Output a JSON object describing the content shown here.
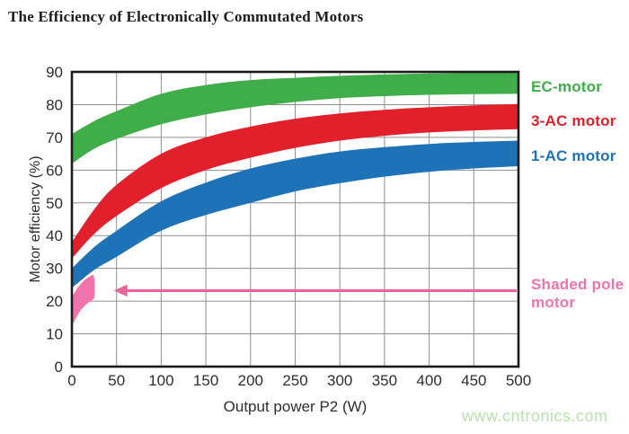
{
  "title": "The Efficiency of Electronically Commutated Motors",
  "watermark": "www.cntronics.com",
  "colors": {
    "green": "#3fae4a",
    "red": "#e2202c",
    "blue": "#1e72b8",
    "pink": "#f173ac",
    "arrow": "#e8649b",
    "grid": "#8f8f8f",
    "axis": "#1b1b1b",
    "text": "#2e2e2e",
    "title": "#1d1d1d",
    "watermark": "#b9e3ac",
    "background": "#ffffff"
  },
  "legend": [
    {
      "label": "EC-motor",
      "color_key": "green"
    },
    {
      "label": "3-AC motor",
      "color_key": "red"
    },
    {
      "label": "1-AC motor",
      "color_key": "blue"
    },
    {
      "label": "Shaded pole motor",
      "color_key": "pink"
    }
  ],
  "chart_data": {
    "type": "area",
    "title": "The Efficiency of Electronically Commutated Motors",
    "xlabel": "Output power P2 (W)",
    "ylabel": "Motor efficiency (%)",
    "xlim": [
      0,
      500
    ],
    "ylim": [
      0,
      90
    ],
    "x_ticks": [
      0,
      50,
      100,
      150,
      200,
      250,
      300,
      350,
      400,
      450,
      500
    ],
    "y_ticks": [
      0,
      10,
      20,
      30,
      40,
      50,
      60,
      70,
      80,
      90
    ],
    "grid": true,
    "legend_position": "right",
    "x": [
      0,
      25,
      50,
      100,
      150,
      200,
      250,
      300,
      350,
      400,
      450,
      500
    ],
    "series": [
      {
        "name": "EC-motor",
        "color_key": "green",
        "upper": [
          71,
          75,
          78,
          83.3,
          86,
          87.5,
          88.2,
          88.8,
          89.2,
          89.5,
          89.8,
          90
        ],
        "lower": [
          62,
          66.5,
          69.5,
          74,
          77,
          79.2,
          80.8,
          82,
          82.6,
          83,
          83.2,
          83.3
        ]
      },
      {
        "name": "3-AC motor",
        "color_key": "red",
        "upper": [
          38,
          48,
          55.5,
          65,
          70,
          73.3,
          75.7,
          77.3,
          78.4,
          79.2,
          79.8,
          80.2
        ],
        "lower": [
          33,
          40.5,
          46,
          54.5,
          60,
          63.8,
          66.8,
          69,
          70.5,
          71.5,
          72.1,
          72.5
        ]
      },
      {
        "name": "1-AC motor",
        "color_key": "blue",
        "upper": [
          30,
          36.5,
          41.5,
          50.5,
          56.2,
          60.5,
          63.5,
          65.7,
          67,
          68,
          68.6,
          69
        ],
        "lower": [
          24,
          29.5,
          33.5,
          41.5,
          46.3,
          50,
          53.5,
          56,
          58,
          59.5,
          60.5,
          61.2
        ]
      }
    ],
    "shaded_pole_band": {
      "name": "Shaded pole motor",
      "color_key": "pink",
      "polygon": [
        [
          0,
          21
        ],
        [
          5,
          23.5
        ],
        [
          10,
          25.3
        ],
        [
          15,
          26.6
        ],
        [
          20,
          27.5
        ],
        [
          23.5,
          28
        ],
        [
          25.3,
          26.8
        ],
        [
          25.6,
          24
        ],
        [
          25.2,
          21.2
        ],
        [
          22,
          20.2
        ],
        [
          17,
          19.2
        ],
        [
          12,
          17.9
        ],
        [
          7,
          16
        ],
        [
          3,
          14
        ],
        [
          0,
          12.5
        ]
      ]
    },
    "arrow": {
      "y": 23.2,
      "x_tail": 498,
      "x_tip": 47
    }
  }
}
